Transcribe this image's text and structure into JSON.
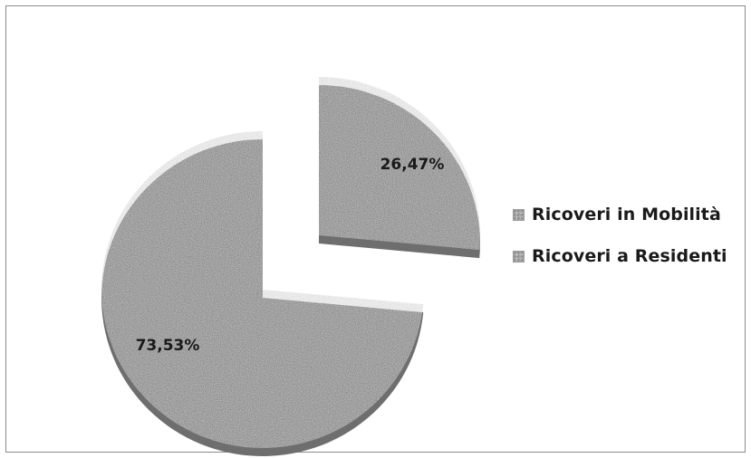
{
  "chart_data": {
    "type": "pie",
    "categories": [
      "Ricoveri in Mobilità",
      "Ricoveri a Residenti"
    ],
    "values": [
      26.47,
      73.53
    ],
    "data_labels": [
      "26,47%",
      "73,53%"
    ],
    "exploded": true,
    "three_d": true,
    "legend_position": "right",
    "colors": {
      "slice_fill": "#a8a8a8",
      "slice_shadow": "#6e6e6e",
      "label_text": "#1a1a1a"
    }
  },
  "legend": {
    "items": [
      {
        "label": "Ricoveri in Mobilità",
        "icon": "gray-square-swatch"
      },
      {
        "label": "Ricoveri a Residenti",
        "icon": "gray-square-swatch"
      }
    ]
  }
}
